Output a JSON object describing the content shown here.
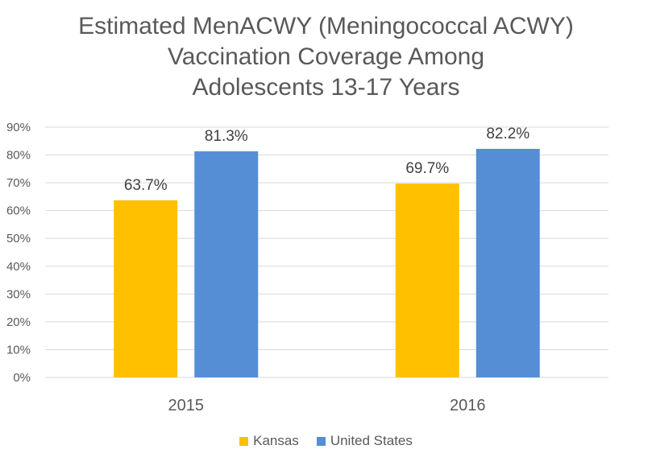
{
  "chart_data": {
    "type": "bar",
    "title_lines": [
      "Estimated MenACWY (Meningococcal ACWY)",
      "Vaccination Coverage Among",
      "Adolescents 13-17 Years"
    ],
    "categories": [
      "2015",
      "2016"
    ],
    "series": [
      {
        "name": "Kansas",
        "values": [
          63.7,
          69.7
        ],
        "labels": [
          "63.7%",
          "69.7%"
        ],
        "color": "#FFC000"
      },
      {
        "name": "United States",
        "values": [
          81.3,
          82.2
        ],
        "labels": [
          "81.3%",
          "82.2%"
        ],
        "color": "#558ED5"
      }
    ],
    "ylim": [
      0,
      90
    ],
    "yticks": [
      0,
      10,
      20,
      30,
      40,
      50,
      60,
      70,
      80,
      90
    ],
    "ytick_labels": [
      "0%",
      "10%",
      "20%",
      "30%",
      "40%",
      "50%",
      "60%",
      "70%",
      "80%",
      "90%"
    ],
    "grid": true,
    "gridline_color": "#D9D9D9",
    "legend_position": "bottom"
  }
}
